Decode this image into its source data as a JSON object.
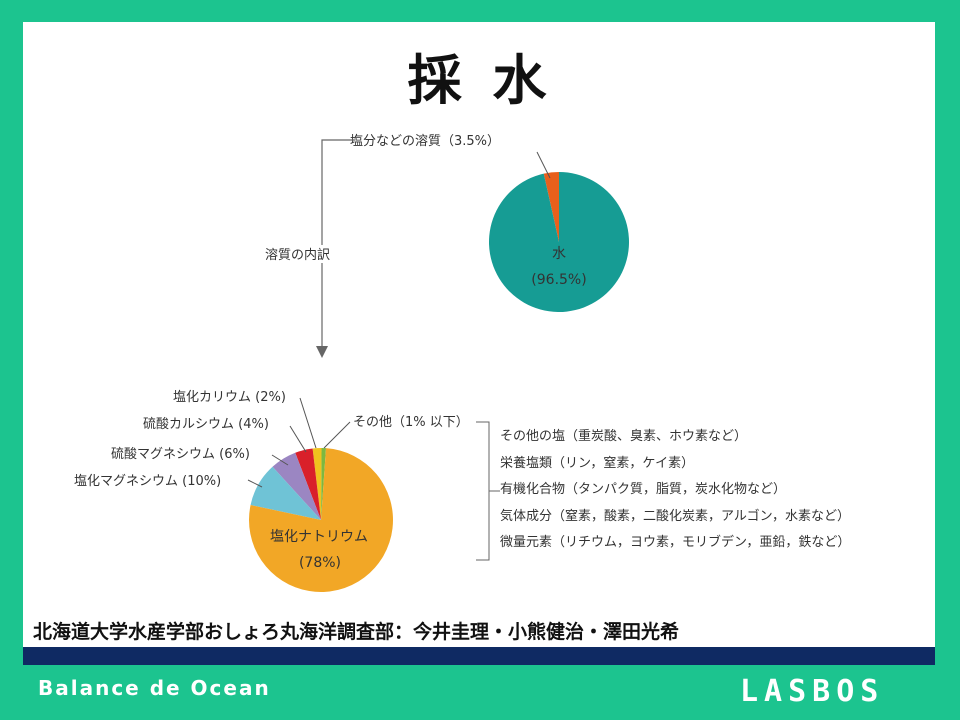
{
  "slide_title": "採 水",
  "top_pie": {
    "solute_label": "塩分などの溶質（3.5%）",
    "water_label": "水",
    "water_pct": "(96.5%)",
    "colors": {
      "water": "#169c94",
      "solute": "#e8601c"
    }
  },
  "arrow_label": "溶質の内訳",
  "bottom_pie": {
    "labels": {
      "nacl": "塩化ナトリウム",
      "nacl_pct": "(78%)",
      "mgcl": "塩化マグネシウム (10%)",
      "mgso4": "硫酸マグネシウム (6%)",
      "caso4": "硫酸カルシウム (4%)",
      "kcl": "塩化カリウム (2%)",
      "other": "その他（1% 以下）"
    },
    "colors": {
      "nacl": "#f2a726",
      "mgcl": "#6fc3d6",
      "mgso4": "#9b86c2",
      "caso4": "#d9202a",
      "kcl": "#f0c21e",
      "other": "#7db840"
    }
  },
  "chart_data": [
    {
      "type": "pie",
      "slices": [
        {
          "label": "水",
          "value": 96.5
        },
        {
          "label": "塩分などの溶質",
          "value": 3.5
        }
      ]
    },
    {
      "type": "pie",
      "slices": [
        {
          "label": "塩化ナトリウム",
          "value": 78
        },
        {
          "label": "塩化マグネシウム",
          "value": 10
        },
        {
          "label": "硫酸マグネシウム",
          "value": 6
        },
        {
          "label": "硫酸カルシウム",
          "value": 4
        },
        {
          "label": "塩化カリウム",
          "value": 2
        },
        {
          "label": "その他",
          "value": 1
        }
      ]
    }
  ],
  "others_list": [
    "その他の塩（重炭酸、臭素、ホウ素など）",
    "栄養塩類（リン，窒素，ケイ素）",
    "有機化合物（タンパク質，脂質，炭水化物など）",
    "気体成分（窒素，酸素，二酸化炭素，アルゴン，水素など）",
    "微量元素（リチウム，ヨウ素，モリブデン，亜鉛，鉄など）"
  ],
  "credit": "北海道大学水産学部おしょろ丸海洋調査部：今井圭理・小熊健治・澤田光希",
  "footer": {
    "tagline": "Balance de Ocean",
    "logo": "LASBOS"
  }
}
